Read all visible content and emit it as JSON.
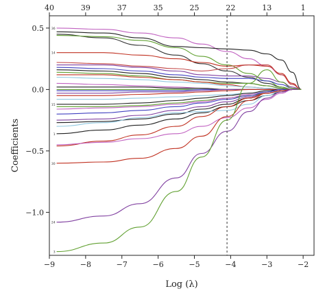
{
  "chart_data": {
    "type": "line",
    "xlabel": "Log (λ)",
    "ylabel": "Coefficients",
    "xlim": [
      -9.0,
      -1.7
    ],
    "ylim": [
      -1.35,
      0.6
    ],
    "x_ticks": [
      -9,
      -8,
      -7,
      -6,
      -5,
      -4,
      -3,
      -2
    ],
    "x_tick_labels": [
      "−9",
      "−8",
      "−7",
      "−6",
      "−5",
      "−4",
      "−3",
      "−2"
    ],
    "y_ticks": [
      0.5,
      0.0,
      -0.5,
      -1.0
    ],
    "y_tick_labels": [
      "0.5",
      "0.0",
      "−0.5",
      "−1.0"
    ],
    "top_ticks": [
      -9,
      -8,
      -7,
      -6,
      -5,
      -4,
      -3,
      -2
    ],
    "top_tick_labels": [
      "40",
      "39",
      "37",
      "35",
      "25",
      "22",
      "13",
      "1"
    ],
    "vline_x": -4.1,
    "x": [
      -8.8,
      -7.5,
      -6.5,
      -5.5,
      -4.8,
      -4.1,
      -3.5,
      -3.0,
      -2.6,
      -2.3,
      -2.05
    ],
    "series": [
      {
        "label": "36",
        "color": "#c060c0",
        "values": [
          0.5,
          0.49,
          0.46,
          0.42,
          0.37,
          0.31,
          0.25,
          0.19,
          0.12,
          0.05,
          0.0
        ]
      },
      {
        "label": "",
        "color": "#202020",
        "values": [
          0.47,
          0.46,
          0.42,
          0.35,
          0.34,
          0.33,
          0.32,
          0.29,
          0.24,
          0.14,
          0.0
        ]
      },
      {
        "label": "",
        "color": "#303030",
        "values": [
          0.45,
          0.42,
          0.36,
          0.28,
          0.21,
          0.15,
          0.1,
          0.05,
          0.02,
          0.0,
          0.0
        ]
      },
      {
        "label": "",
        "color": "#60a030",
        "values": [
          0.44,
          0.43,
          0.4,
          0.34,
          0.27,
          0.2,
          0.13,
          0.07,
          0.02,
          0.0,
          0.0
        ]
      },
      {
        "label": "14",
        "color": "#c03020",
        "values": [
          0.3,
          0.3,
          0.28,
          0.25,
          0.22,
          0.19,
          0.2,
          0.19,
          0.13,
          0.05,
          0.0
        ]
      },
      {
        "label": "",
        "color": "#c04040",
        "values": [
          0.22,
          0.21,
          0.19,
          0.17,
          0.15,
          0.17,
          0.2,
          0.2,
          0.12,
          0.04,
          0.0
        ]
      },
      {
        "label": "",
        "color": "#8040a0",
        "values": [
          0.2,
          0.2,
          0.18,
          0.15,
          0.12,
          0.11,
          0.11,
          0.09,
          0.06,
          0.02,
          0.0
        ]
      },
      {
        "label": "",
        "color": "#4040c0",
        "values": [
          0.18,
          0.17,
          0.15,
          0.12,
          0.1,
          0.09,
          0.09,
          0.07,
          0.04,
          0.01,
          0.0
        ]
      },
      {
        "label": "",
        "color": "#202020",
        "values": [
          0.16,
          0.15,
          0.13,
          0.1,
          0.08,
          0.06,
          0.05,
          0.03,
          0.01,
          0.0,
          0.0
        ]
      },
      {
        "label": "",
        "color": "#60a030",
        "values": [
          0.14,
          0.13,
          0.11,
          0.08,
          0.06,
          0.05,
          0.05,
          0.03,
          0.01,
          0.0,
          0.0
        ]
      },
      {
        "label": "",
        "color": "#c03020",
        "values": [
          0.12,
          0.12,
          0.1,
          0.08,
          0.06,
          0.04,
          0.02,
          0.01,
          0.0,
          0.0,
          0.0
        ]
      },
      {
        "label": "",
        "color": "#90c8e0",
        "values": [
          0.1,
          0.09,
          0.08,
          0.06,
          0.05,
          0.03,
          0.02,
          0.01,
          0.0,
          0.0,
          0.0
        ]
      },
      {
        "label": "",
        "color": "#c060c0",
        "values": [
          0.05,
          0.04,
          0.03,
          0.02,
          0.01,
          0.0,
          0.0,
          0.0,
          0.0,
          0.0,
          0.0
        ]
      },
      {
        "label": "",
        "color": "#202020",
        "values": [
          0.02,
          0.02,
          0.02,
          0.01,
          0.01,
          0.0,
          0.0,
          0.0,
          0.0,
          0.0,
          0.0
        ]
      },
      {
        "label": "",
        "color": "#60a030",
        "values": [
          0.0,
          0.0,
          0.0,
          0.0,
          0.0,
          0.0,
          0.0,
          0.0,
          0.0,
          0.0,
          0.0
        ]
      },
      {
        "label": "",
        "color": "#4040c0",
        "values": [
          -0.01,
          -0.01,
          -0.01,
          -0.01,
          0.0,
          0.0,
          0.0,
          0.0,
          0.0,
          0.0,
          0.0
        ]
      },
      {
        "label": "",
        "color": "#8040a0",
        "values": [
          -0.03,
          -0.03,
          -0.02,
          -0.02,
          -0.01,
          0.0,
          0.0,
          0.0,
          0.0,
          0.0,
          0.0
        ]
      },
      {
        "label": "",
        "color": "#c03020",
        "values": [
          -0.05,
          -0.05,
          -0.04,
          -0.03,
          -0.02,
          -0.01,
          0.0,
          0.0,
          0.0,
          0.0,
          0.0
        ]
      },
      {
        "label": "",
        "color": "#90c8e0",
        "values": [
          -0.08,
          -0.08,
          -0.07,
          -0.06,
          -0.05,
          -0.04,
          -0.03,
          -0.02,
          -0.01,
          0.0,
          0.0
        ]
      },
      {
        "label": "15",
        "color": "#202020",
        "values": [
          -0.12,
          -0.12,
          -0.11,
          -0.09,
          -0.07,
          -0.05,
          -0.03,
          -0.01,
          0.0,
          0.0,
          0.0
        ]
      },
      {
        "label": "",
        "color": "#60a030",
        "values": [
          -0.14,
          -0.14,
          -0.13,
          -0.11,
          -0.09,
          -0.07,
          -0.05,
          -0.03,
          -0.01,
          0.0,
          0.0
        ]
      },
      {
        "label": "",
        "color": "#c060c0",
        "values": [
          -0.16,
          -0.15,
          -0.14,
          -0.12,
          -0.1,
          -0.07,
          -0.04,
          -0.02,
          0.0,
          0.0,
          0.0
        ]
      },
      {
        "label": "",
        "color": "#4040c0",
        "values": [
          -0.2,
          -0.19,
          -0.17,
          -0.14,
          -0.11,
          -0.08,
          -0.05,
          -0.02,
          0.0,
          0.0,
          0.0
        ]
      },
      {
        "label": "",
        "color": "#8040a0",
        "values": [
          -0.25,
          -0.24,
          -0.21,
          -0.17,
          -0.14,
          -0.1,
          -0.06,
          -0.03,
          -0.01,
          0.0,
          0.0
        ]
      },
      {
        "label": "",
        "color": "#202020",
        "values": [
          -0.27,
          -0.26,
          -0.24,
          -0.2,
          -0.16,
          -0.12,
          -0.07,
          -0.03,
          -0.01,
          0.0,
          0.0
        ]
      },
      {
        "label": "1",
        "color": "#202020",
        "values": [
          -0.36,
          -0.33,
          -0.29,
          -0.24,
          -0.19,
          -0.14,
          -0.09,
          -0.05,
          -0.02,
          0.0,
          0.0
        ]
      },
      {
        "label": "",
        "color": "#90c8e0",
        "values": [
          -0.3,
          -0.27,
          -0.23,
          -0.19,
          -0.18,
          -0.17,
          -0.12,
          -0.05,
          -0.01,
          0.0,
          0.0
        ]
      },
      {
        "label": "",
        "color": "#c03020",
        "values": [
          -0.46,
          -0.42,
          -0.37,
          -0.3,
          -0.22,
          -0.14,
          -0.07,
          -0.03,
          -0.01,
          0.0,
          0.0
        ]
      },
      {
        "label": "",
        "color": "#c060c0",
        "values": [
          -0.45,
          -0.43,
          -0.4,
          -0.36,
          -0.3,
          -0.23,
          -0.15,
          -0.08,
          -0.03,
          0.0,
          0.0
        ]
      },
      {
        "label": "30",
        "color": "#c03020",
        "values": [
          -0.6,
          -0.59,
          -0.56,
          -0.48,
          -0.38,
          -0.22,
          -0.09,
          -0.03,
          -0.01,
          0.0,
          0.0
        ]
      },
      {
        "label": "24",
        "color": "#8040a0",
        "values": [
          -1.08,
          -1.03,
          -0.93,
          -0.72,
          -0.52,
          -0.34,
          -0.18,
          -0.07,
          -0.02,
          0.0,
          0.0
        ]
      },
      {
        "label": "3",
        "color": "#60a030",
        "values": [
          -1.32,
          -1.25,
          -1.12,
          -0.83,
          -0.55,
          -0.25,
          0.05,
          0.16,
          0.06,
          0.01,
          0.0
        ]
      }
    ]
  }
}
